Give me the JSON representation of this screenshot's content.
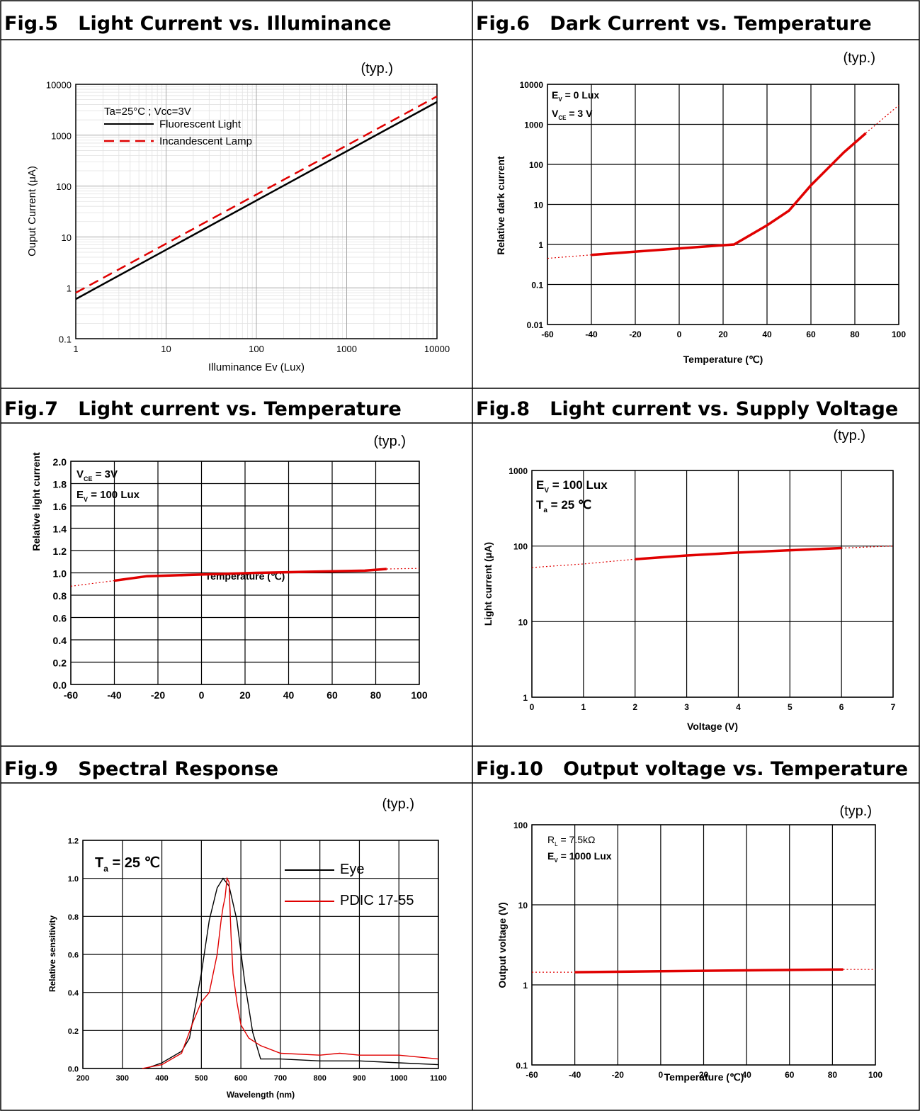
{
  "typ_label": "(typ.)",
  "panels": [
    {
      "fig": "Fig.5",
      "title": "Light Current vs. Illuminance"
    },
    {
      "fig": "Fig.6",
      "title": "Dark Current vs. Temperature"
    },
    {
      "fig": "Fig.7",
      "title": "Light current vs. Temperature"
    },
    {
      "fig": "Fig.8",
      "title": "Light current vs. Supply Voltage"
    },
    {
      "fig": "Fig.9",
      "title": "Spectral Response"
    },
    {
      "fig": "Fig.10",
      "title": "Output voltage vs. Temperature"
    }
  ],
  "chart_data": [
    {
      "id": "fig5",
      "type": "line",
      "xscale": "log",
      "yscale": "log",
      "xlim": [
        1,
        10000
      ],
      "ylim": [
        0.1,
        10000
      ],
      "xticks": [
        "1",
        "10",
        "100",
        "1000",
        "10000"
      ],
      "yticks": [
        "0.1",
        "1",
        "10",
        "100",
        "1000",
        "10000"
      ],
      "xlabel": "Illuminance Ev (Lux)",
      "ylabel": "Ouput Current (μA)",
      "annotations": [
        "Ta=25°C ; Vcc=3V"
      ],
      "legend": "top-left",
      "series": [
        {
          "name": "Fluorescent Light",
          "color": "#000000",
          "dash": "solid",
          "x": [
            1,
            10000
          ],
          "y": [
            0.6,
            4500
          ]
        },
        {
          "name": "Incandescent Lamp",
          "color": "#e00000",
          "dash": "dashed",
          "x": [
            1,
            10000
          ],
          "y": [
            0.8,
            5800
          ]
        }
      ]
    },
    {
      "id": "fig6",
      "type": "line",
      "xscale": "linear",
      "yscale": "log",
      "xlim": [
        -60,
        100
      ],
      "ylim": [
        0.01,
        10000
      ],
      "xticks": [
        "-60",
        "-40",
        "-20",
        "0",
        "20",
        "40",
        "60",
        "80",
        "100"
      ],
      "yticks": [
        "0.01",
        "0.1",
        "1",
        "10",
        "100",
        "1000",
        "10000"
      ],
      "xlabel": "Temperature (℃)",
      "ylabel": "Relative dark current",
      "annotations": [
        "E_V = 0 Lux",
        "V_CE = 3 V"
      ],
      "series": [
        {
          "name": "",
          "color": "#e00000",
          "dash": "solid",
          "x": [
            -40,
            25,
            40,
            50,
            60,
            75,
            85
          ],
          "y": [
            0.55,
            1.0,
            3.0,
            7.0,
            30,
            200,
            600
          ]
        },
        {
          "name": "",
          "color": "#e00000",
          "dash": "dotted",
          "x": [
            -60,
            -40
          ],
          "y": [
            0.45,
            0.55
          ]
        },
        {
          "name": "",
          "color": "#e00000",
          "dash": "dotted",
          "x": [
            85,
            100
          ],
          "y": [
            600,
            3000
          ]
        }
      ]
    },
    {
      "id": "fig7",
      "type": "line",
      "xscale": "linear",
      "yscale": "linear",
      "xlim": [
        -60,
        100
      ],
      "ylim": [
        0,
        2.0
      ],
      "xticks": [
        "-60",
        "-40",
        "-20",
        "0",
        "20",
        "40",
        "60",
        "80",
        "100"
      ],
      "yticks": [
        "0.0",
        "0.2",
        "0.4",
        "0.6",
        "0.8",
        "1.0",
        "1.2",
        "1.4",
        "1.6",
        "1.8",
        "2.0"
      ],
      "xlabel": "Temperature (℃)",
      "ylabel": "Relative light current",
      "annotations": [
        "V_CE = 3V",
        "E_V = 100 Lux"
      ],
      "series": [
        {
          "name": "",
          "color": "#e00000",
          "dash": "solid",
          "x": [
            -40,
            -25,
            0,
            25,
            50,
            75,
            85
          ],
          "y": [
            0.93,
            0.97,
            0.985,
            1.0,
            1.01,
            1.02,
            1.035
          ]
        },
        {
          "name": "",
          "color": "#e00000",
          "dash": "dotted",
          "x": [
            -60,
            -40
          ],
          "y": [
            0.88,
            0.93
          ]
        },
        {
          "name": "",
          "color": "#e00000",
          "dash": "dotted",
          "x": [
            85,
            100
          ],
          "y": [
            1.035,
            1.04
          ]
        }
      ]
    },
    {
      "id": "fig8",
      "type": "line",
      "xscale": "linear",
      "yscale": "log",
      "xlim": [
        0,
        7
      ],
      "ylim": [
        1,
        1000
      ],
      "xticks": [
        "0",
        "1",
        "2",
        "3",
        "4",
        "5",
        "6",
        "7"
      ],
      "yticks": [
        "1",
        "10",
        "100",
        "1000"
      ],
      "xlabel": "Voltage (V)",
      "ylabel": "Light current (μA)",
      "annotations": [
        "E_V = 100 Lux",
        "T_a = 25 ℃"
      ],
      "series": [
        {
          "name": "",
          "color": "#e00000",
          "dash": "solid",
          "x": [
            2,
            3,
            4,
            5,
            6
          ],
          "y": [
            67,
            75,
            82,
            88,
            94
          ]
        },
        {
          "name": "",
          "color": "#e00000",
          "dash": "dotted",
          "x": [
            0,
            1,
            2
          ],
          "y": [
            52,
            58,
            67
          ]
        },
        {
          "name": "",
          "color": "#e00000",
          "dash": "dotted",
          "x": [
            6,
            7
          ],
          "y": [
            94,
            100
          ]
        }
      ]
    },
    {
      "id": "fig9",
      "type": "line",
      "xscale": "linear",
      "yscale": "linear",
      "xlim": [
        200,
        1100
      ],
      "ylim": [
        0,
        1.2
      ],
      "xticks": [
        "200",
        "300",
        "400",
        "500",
        "600",
        "700",
        "800",
        "900",
        "1000",
        "1100"
      ],
      "yticks": [
        "0.0",
        "0.2",
        "0.4",
        "0.6",
        "0.8",
        "1.0",
        "1.2"
      ],
      "xlabel": "Wavelength (nm)",
      "ylabel": "Relative sensitivity",
      "annotations": [
        "T_a = 25 ℃"
      ],
      "legend": "top-right",
      "series": [
        {
          "name": "Eye",
          "color": "#000000",
          "dash": "solid",
          "x": [
            360,
            400,
            450,
            470,
            500,
            520,
            540,
            555,
            570,
            590,
            610,
            630,
            650,
            700,
            800,
            900,
            1000,
            1100
          ],
          "y": [
            0.0,
            0.03,
            0.09,
            0.16,
            0.5,
            0.78,
            0.95,
            1.0,
            0.96,
            0.78,
            0.45,
            0.19,
            0.05,
            0.05,
            0.04,
            0.04,
            0.03,
            0.02
          ]
        },
        {
          "name": "PDIC 17-55",
          "color": "#e00000",
          "dash": "solid",
          "x": [
            350,
            400,
            450,
            480,
            500,
            520,
            540,
            550,
            555,
            560,
            565,
            570,
            575,
            580,
            590,
            600,
            620,
            650,
            700,
            800,
            850,
            900,
            1000,
            1100
          ],
          "y": [
            0.0,
            0.02,
            0.08,
            0.25,
            0.35,
            0.4,
            0.6,
            0.78,
            0.85,
            0.9,
            1.0,
            0.98,
            0.7,
            0.5,
            0.35,
            0.23,
            0.16,
            0.12,
            0.08,
            0.07,
            0.08,
            0.07,
            0.07,
            0.05
          ]
        }
      ]
    },
    {
      "id": "fig10",
      "type": "line",
      "xscale": "linear",
      "yscale": "log",
      "xlim": [
        -60,
        100
      ],
      "ylim": [
        0.1,
        100
      ],
      "xticks": [
        "-60",
        "-40",
        "-20",
        "0",
        "20",
        "40",
        "60",
        "80",
        "100"
      ],
      "yticks": [
        "0.1",
        "1",
        "10",
        "100"
      ],
      "xlabel": "Temperature (℃)",
      "ylabel": "Output voltage (V)",
      "annotations": [
        "R_L = 7.5kΩ",
        "E_V = 1000 Lux"
      ],
      "series": [
        {
          "name": "",
          "color": "#e00000",
          "dash": "solid",
          "x": [
            -40,
            0,
            40,
            85
          ],
          "y": [
            1.44,
            1.48,
            1.52,
            1.56
          ]
        },
        {
          "name": "",
          "color": "#e00000",
          "dash": "dotted",
          "x": [
            -60,
            -40
          ],
          "y": [
            1.44,
            1.44
          ]
        },
        {
          "name": "",
          "color": "#e00000",
          "dash": "dotted",
          "x": [
            85,
            100
          ],
          "y": [
            1.56,
            1.56
          ]
        }
      ]
    }
  ]
}
